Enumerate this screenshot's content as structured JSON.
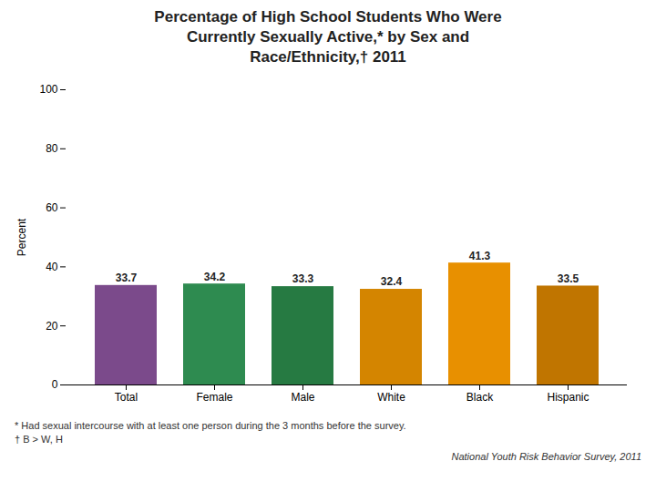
{
  "chart_data": {
    "type": "bar",
    "title": "Percentage of High School Students Who Were\nCurrently Sexually Active,*  by Sex and\nRace/Ethnicity,† 2011",
    "categories": [
      "Total",
      "Female",
      "Male",
      "White",
      "Black",
      "Hispanic"
    ],
    "values": [
      33.7,
      34.2,
      33.3,
      32.4,
      41.3,
      33.5
    ],
    "colors": [
      "#7B4A8B",
      "#2E8B50",
      "#267A42",
      "#D48500",
      "#E89000",
      "#C07500"
    ],
    "ylabel": "Percent",
    "ylim": [
      0,
      100
    ],
    "yticks": [
      0,
      20,
      40,
      60,
      80,
      100
    ],
    "grid": false,
    "data_labels": true,
    "annotations": [
      "* Had sexual intercourse with at least one person during the 3 months before the survey.",
      "† B > W, H",
      "National Youth Risk Behavior Survey, 2011"
    ]
  }
}
